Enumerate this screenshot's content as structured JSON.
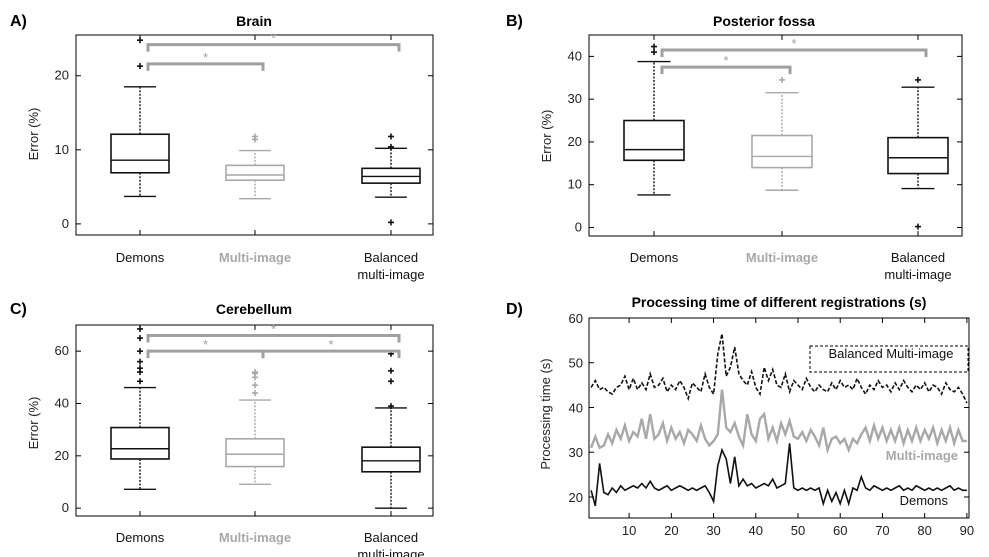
{
  "colors": {
    "dark": "#111111",
    "light": "#a8a8a8",
    "sig": "#a0a0a0"
  },
  "chart_data": [
    {
      "panel": "A)",
      "type": "box",
      "title": "Brain",
      "ylabel": "Error (%)",
      "ylim": [
        -1.5,
        25.5
      ],
      "yticks": [
        0,
        10,
        20
      ],
      "categories": [
        "Demons",
        "Multi-image",
        [
          "Balanced",
          "multi-image"
        ]
      ],
      "category_colors": [
        "dark",
        "light",
        "dark"
      ],
      "boxes": [
        {
          "whisker_low": 3.7,
          "q1": 6.9,
          "median": 8.6,
          "q3": 12.1,
          "whisker_high": 18.5,
          "outliers": [
            21.3,
            24.8
          ],
          "color": "dark"
        },
        {
          "whisker_low": 3.4,
          "q1": 5.9,
          "median": 6.6,
          "q3": 7.9,
          "whisker_high": 9.9,
          "outliers": [
            11.4,
            11.8
          ],
          "color": "light"
        },
        {
          "whisker_low": 3.6,
          "q1": 5.5,
          "median": 6.4,
          "q3": 7.5,
          "whisker_high": 10.2,
          "outliers": [
            10.4,
            11.8,
            0.2
          ],
          "color": "dark"
        }
      ],
      "significance": [
        {
          "from": 0,
          "to": 1,
          "label": "*",
          "y": 21.6
        },
        {
          "from": 0,
          "to": 2,
          "label": "*",
          "y": 24.2
        }
      ]
    },
    {
      "panel": "B)",
      "type": "box",
      "title": "Posterior fossa",
      "ylabel": "Error (%)",
      "ylim": [
        -2,
        45
      ],
      "yticks": [
        0,
        10,
        20,
        30,
        40
      ],
      "categories": [
        "Demons",
        "Multi-image",
        [
          "Balanced",
          "multi-image"
        ]
      ],
      "category_colors": [
        "dark",
        "light",
        "dark"
      ],
      "boxes": [
        {
          "whisker_low": 7.6,
          "q1": 15.7,
          "median": 18.2,
          "q3": 25.0,
          "whisker_high": 38.8,
          "outliers": [
            41.0,
            42.3
          ],
          "color": "dark"
        },
        {
          "whisker_low": 8.7,
          "q1": 14.0,
          "median": 16.6,
          "q3": 21.5,
          "whisker_high": 31.5,
          "outliers": [
            34.5
          ],
          "color": "light"
        },
        {
          "whisker_low": 9.1,
          "q1": 12.6,
          "median": 16.3,
          "q3": 21.0,
          "whisker_high": 32.8,
          "outliers": [
            34.5,
            0.2
          ],
          "color": "dark"
        }
      ],
      "significance": [
        {
          "from": 0,
          "to": 1,
          "label": "*",
          "y": 37.5
        },
        {
          "from": 0,
          "to": 2,
          "label": "*",
          "y": 41.5
        }
      ]
    },
    {
      "panel": "C)",
      "type": "box",
      "title": "Cerebellum",
      "ylabel": "Error (%)",
      "ylim": [
        -3,
        70
      ],
      "yticks": [
        0,
        20,
        40,
        60
      ],
      "categories": [
        "Demons",
        "Multi-image",
        [
          "Balanced",
          "multi-image"
        ]
      ],
      "category_colors": [
        "dark",
        "light",
        "dark"
      ],
      "boxes": [
        {
          "whisker_low": 7.2,
          "q1": 18.8,
          "median": 22.7,
          "q3": 30.8,
          "whisker_high": 46.1,
          "outliers": [
            48.5,
            52.0,
            53.5,
            56.0,
            60.0,
            65.0,
            68.5
          ],
          "color": "dark"
        },
        {
          "whisker_low": 9.1,
          "q1": 15.9,
          "median": 20.6,
          "q3": 26.5,
          "whisker_high": 41.3,
          "outliers": [
            44.0,
            47.0,
            50.0,
            51.5,
            52.0
          ],
          "color": "light"
        },
        {
          "whisker_low": 0,
          "q1": 13.9,
          "median": 18.1,
          "q3": 23.3,
          "whisker_high": 38.3,
          "outliers": [
            39.0,
            48.5,
            52.5,
            59.0
          ],
          "color": "dark"
        }
      ],
      "significance": [
        {
          "from": 0,
          "to": 1,
          "label": "*",
          "y": 60.0
        },
        {
          "from": 1,
          "to": 2,
          "label": "*",
          "y": 60.0
        },
        {
          "from": 0,
          "to": 2,
          "label": "*",
          "y": 66.0
        }
      ]
    },
    {
      "panel": "D)",
      "type": "line",
      "title": "Processing time of different registrations (s)",
      "xlabel": "",
      "ylabel": "Processing time (s)",
      "xlim": [
        0.5,
        90.5
      ],
      "ylim": [
        15.3,
        60
      ],
      "xticks": [
        10,
        20,
        30,
        40,
        50,
        60,
        70,
        80,
        90
      ],
      "yticks": [
        20,
        30,
        40,
        50,
        60
      ],
      "series": [
        {
          "name": "Balanced Multi-image",
          "color": "dark",
          "dash": true,
          "label_box": true,
          "y": [
            44.5,
            46.0,
            44.0,
            44.5,
            43.5,
            43.0,
            44.5,
            45.0,
            47.0,
            44.0,
            46.5,
            44.0,
            45.5,
            44.0,
            47.5,
            44.5,
            45.0,
            46.5,
            43.5,
            45.0,
            44.0,
            46.0,
            44.5,
            42.0,
            45.5,
            44.5,
            43.5,
            47.5,
            44.5,
            43.0,
            52.0,
            56.5,
            47.0,
            49.0,
            53.5,
            47.5,
            46.0,
            45.0,
            48.0,
            44.5,
            43.0,
            49.0,
            46.0,
            48.5,
            45.0,
            44.5,
            47.5,
            43.5,
            46.0,
            45.0,
            44.0,
            46.5,
            44.5,
            43.5,
            45.0,
            44.0,
            43.5,
            45.5,
            44.0,
            46.0,
            44.5,
            45.0,
            44.0,
            46.5,
            44.5,
            43.0,
            45.0,
            44.0,
            46.0,
            44.5,
            45.0,
            43.5,
            45.5,
            44.0,
            46.0,
            44.5,
            43.5,
            45.0,
            44.0,
            45.5,
            43.5,
            45.0,
            44.5,
            43.0,
            45.5,
            44.0,
            43.5,
            44.5,
            43.0,
            41.0
          ]
        },
        {
          "name": "Multi-image",
          "color": "light",
          "dash": false,
          "label_box": false,
          "y": [
            31.0,
            33.5,
            31.0,
            31.5,
            34.0,
            32.0,
            35.0,
            33.0,
            36.0,
            32.5,
            34.5,
            33.5,
            37.5,
            33.0,
            38.5,
            33.0,
            34.0,
            36.5,
            32.5,
            35.5,
            33.0,
            34.5,
            32.0,
            35.0,
            34.0,
            32.5,
            36.0,
            33.0,
            31.5,
            32.5,
            34.0,
            44.0,
            35.5,
            34.5,
            36.5,
            33.5,
            31.5,
            38.5,
            34.0,
            32.5,
            37.5,
            38.5,
            33.0,
            35.5,
            32.5,
            36.5,
            34.0,
            37.0,
            33.5,
            33.0,
            34.5,
            32.5,
            35.0,
            33.5,
            31.5,
            35.5,
            30.5,
            33.0,
            33.5,
            32.0,
            33.0,
            30.5,
            33.0,
            32.0,
            34.0,
            35.5,
            32.5,
            36.0,
            33.0,
            35.5,
            32.5,
            35.0,
            32.5,
            35.5,
            32.0,
            35.0,
            32.5,
            35.5,
            32.5,
            35.0,
            33.0,
            35.5,
            32.0,
            35.0,
            32.5,
            35.5,
            32.0,
            35.0,
            32.5,
            32.5
          ]
        },
        {
          "name": "Demons",
          "color": "dark",
          "dash": false,
          "label_box": false,
          "y": [
            21.5,
            18.0,
            27.5,
            21.0,
            20.5,
            22.0,
            21.0,
            22.5,
            21.5,
            22.0,
            22.5,
            22.0,
            23.0,
            22.0,
            23.5,
            22.0,
            21.5,
            22.0,
            22.5,
            21.5,
            22.0,
            22.5,
            22.0,
            21.5,
            22.0,
            21.5,
            22.0,
            22.5,
            21.0,
            19.0,
            27.0,
            30.5,
            28.5,
            23.0,
            29.0,
            22.5,
            24.0,
            22.5,
            23.0,
            22.0,
            22.5,
            23.0,
            22.5,
            24.0,
            22.0,
            22.5,
            23.0,
            32.0,
            22.0,
            21.5,
            22.0,
            21.5,
            22.0,
            21.5,
            22.0,
            18.5,
            21.5,
            19.0,
            21.0,
            18.5,
            21.5,
            18.5,
            22.0,
            21.5,
            24.5,
            22.0,
            21.5,
            22.5,
            22.0,
            21.5,
            22.0,
            21.5,
            22.0,
            22.5,
            21.5,
            22.0,
            21.5,
            22.5,
            22.0,
            21.5,
            22.0,
            21.5,
            22.0,
            21.5,
            22.0,
            22.5,
            21.5,
            22.0,
            21.5,
            21.5
          ]
        }
      ]
    }
  ]
}
